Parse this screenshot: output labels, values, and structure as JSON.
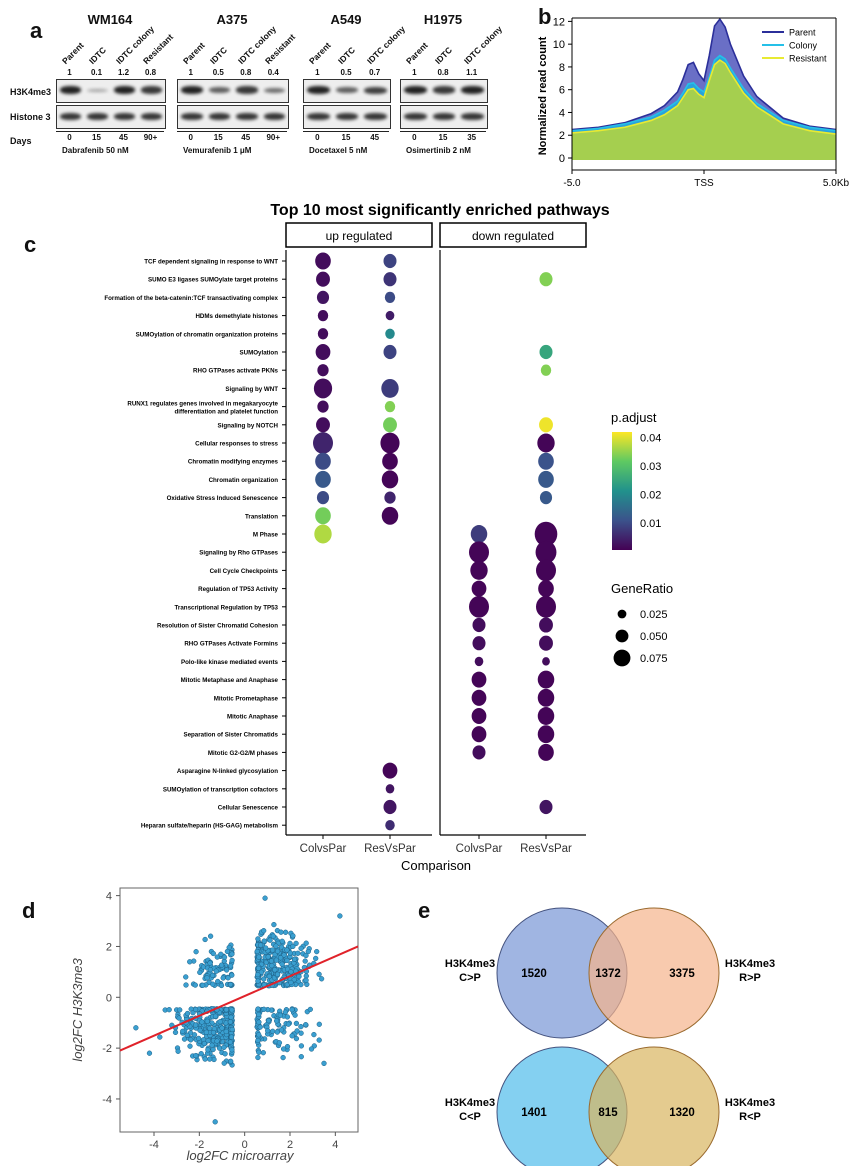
{
  "panel_labels": {
    "a": "a",
    "b": "b",
    "c": "c",
    "d": "d",
    "e": "e"
  },
  "panel_a": {
    "row_labels": [
      "H3K4me3",
      "Histone 3"
    ],
    "days_label": "Days",
    "blots": [
      {
        "title": "WM164",
        "lanes": [
          "Parent",
          "IDTC",
          "IDTC colony",
          "Resistant"
        ],
        "ratios": [
          "1",
          "0.1",
          "1.2",
          "0.8"
        ],
        "days": [
          "0",
          "15",
          "45",
          "90+"
        ],
        "drug": "Dabrafenib 50 nM",
        "h3k4_intensity": [
          1,
          0.15,
          1,
          0.85
        ]
      },
      {
        "title": "A375",
        "lanes": [
          "Parent",
          "IDTC",
          "IDTC colony",
          "Resistant"
        ],
        "ratios": [
          "1",
          "0.5",
          "0.8",
          "0.4"
        ],
        "days": [
          "0",
          "15",
          "45",
          "90+"
        ],
        "drug": "Vemurafenib 1 μM",
        "h3k4_intensity": [
          1,
          0.6,
          0.85,
          0.5
        ]
      },
      {
        "title": "A549",
        "lanes": [
          "Parent",
          "IDTC",
          "IDTC colony"
        ],
        "ratios": [
          "1",
          "0.5",
          "0.7"
        ],
        "days": [
          "0",
          "15",
          "45"
        ],
        "drug": "Docetaxel 5 nM",
        "h3k4_intensity": [
          1,
          0.6,
          0.8
        ]
      },
      {
        "title": "H1975",
        "lanes": [
          "Parent",
          "IDTC",
          "IDTC colony"
        ],
        "ratios": [
          "1",
          "0.8",
          "1.1"
        ],
        "days": [
          "0",
          "15",
          "35"
        ],
        "drug": "Osimertinib 2 nM",
        "h3k4_intensity": [
          1,
          0.85,
          1
        ]
      }
    ]
  },
  "chart_data": [
    {
      "type": "area",
      "panel": "b",
      "xlabel": "",
      "ylabel": "Normalized read count",
      "ylim": [
        0,
        13
      ],
      "yticks": [
        0,
        2,
        4,
        6,
        8,
        10,
        12
      ],
      "xticks": [
        "-5.0",
        "TSS",
        "5.0Kb"
      ],
      "legend_position": "top-right",
      "series": [
        {
          "name": "Parent",
          "color": "#2b2f9a",
          "fill": "#6a6fc6",
          "x": [
            -5,
            -4,
            -3,
            -2,
            -1.5,
            -1,
            -0.8,
            -0.6,
            -0.4,
            -0.2,
            0,
            0.2,
            0.4,
            0.6,
            0.8,
            1,
            1.5,
            2,
            3,
            4,
            5
          ],
          "values": [
            2.5,
            2.7,
            3.1,
            3.9,
            4.6,
            5.8,
            6.9,
            8.2,
            8.4,
            7.4,
            6.8,
            9.0,
            11.6,
            12.2,
            11.5,
            10.0,
            7.2,
            5.4,
            3.5,
            2.8,
            2.5
          ]
        },
        {
          "name": "Colony",
          "color": "#25c0e8",
          "fill": "#29a3dc",
          "x": [
            -5,
            -4,
            -3,
            -2,
            -1.5,
            -1,
            -0.8,
            -0.6,
            -0.4,
            -0.2,
            0,
            0.2,
            0.4,
            0.6,
            0.8,
            1,
            1.5,
            2,
            3,
            4,
            5
          ],
          "values": [
            2.4,
            2.6,
            3.0,
            3.6,
            4.2,
            5.0,
            5.7,
            6.5,
            6.6,
            6.1,
            5.8,
            7.1,
            8.6,
            9.0,
            8.7,
            7.9,
            6.1,
            4.8,
            3.3,
            2.7,
            2.4
          ]
        },
        {
          "name": "Resistant",
          "color": "#e8ea32",
          "fill": "#a5cf4f",
          "x": [
            -5,
            -4,
            -3,
            -2,
            -1.5,
            -1,
            -0.8,
            -0.6,
            -0.4,
            -0.2,
            0,
            0.2,
            0.4,
            0.6,
            0.8,
            1,
            1.5,
            2,
            3,
            4,
            5
          ],
          "values": [
            2.2,
            2.4,
            2.7,
            3.3,
            3.8,
            4.6,
            5.3,
            6.0,
            6.1,
            5.6,
            5.3,
            6.8,
            8.2,
            8.6,
            8.3,
            7.5,
            5.7,
            4.5,
            3.0,
            2.4,
            2.1
          ]
        }
      ]
    },
    {
      "type": "scatter",
      "panel": "c",
      "title": "Top 10 most significantly enriched pathways",
      "xlabel": "Comparison",
      "facets": [
        "up regulated",
        "down regulated"
      ],
      "comparisons": [
        "ColvsPar",
        "ResVsPar"
      ],
      "color_legend": {
        "title": "p.adjust",
        "ticks": [
          "0.04",
          "0.03",
          "0.02",
          "0.01"
        ],
        "range": [
          0.0005,
          0.042
        ]
      },
      "size_legend": {
        "title": "GeneRatio",
        "ticks": [
          "0.025",
          "0.050",
          "0.075"
        ]
      },
      "pathways": [
        "TCF dependent signaling in response to WNT",
        "SUMO E3 ligases SUMOylate target proteins",
        "Formation of the beta-catenin:TCF transactivating complex",
        "HDMs demethylate histones",
        "SUMOylation of chromatin organization proteins",
        "SUMOylation",
        "RHO GTPases activate PKNs",
        "Signaling by WNT",
        "RUNX1 regulates genes involved in megakaryocyte differentiation and platelet function",
        "Signaling by NOTCH",
        "Cellular responses to stress",
        "Chromatin modifying enzymes",
        "Chromatin organization",
        "Oxidative Stress Induced Senescence",
        "Translation",
        "M Phase",
        "Signaling by Rho GTPases",
        "Cell Cycle Checkpoints",
        "Regulation of TP53 Activity",
        "Transcriptional Regulation by TP53",
        "Resolution of Sister Chromatid Cohesion",
        "RHO GTPases Activate Formins",
        "Polo-like kinase mediated events",
        "Mitotic Metaphase and Anaphase",
        "Mitotic Prometaphase",
        "Mitotic Anaphase",
        "Separation of Sister Chromatids",
        "Mitotic G2-G2/M phases",
        "Asparagine N-linked glycosylation",
        "SUMOylation of transcription cofactors",
        "Cellular Senescence",
        "Heparan sulfate/heparin (HS-GAG) metabolism"
      ],
      "points": [
        {
          "facet": 0,
          "comp": 0,
          "row": 0,
          "p": 0.002,
          "ratio": 0.06
        },
        {
          "facet": 0,
          "comp": 1,
          "row": 0,
          "p": 0.009,
          "ratio": 0.045
        },
        {
          "facet": 0,
          "comp": 0,
          "row": 1,
          "p": 0.002,
          "ratio": 0.05
        },
        {
          "facet": 0,
          "comp": 1,
          "row": 1,
          "p": 0.007,
          "ratio": 0.045
        },
        {
          "facet": 1,
          "comp": 1,
          "row": 1,
          "p": 0.034,
          "ratio": 0.045
        },
        {
          "facet": 0,
          "comp": 0,
          "row": 2,
          "p": 0.003,
          "ratio": 0.04
        },
        {
          "facet": 0,
          "comp": 1,
          "row": 2,
          "p": 0.01,
          "ratio": 0.03
        },
        {
          "facet": 0,
          "comp": 0,
          "row": 3,
          "p": 0.002,
          "ratio": 0.03
        },
        {
          "facet": 0,
          "comp": 1,
          "row": 3,
          "p": 0.004,
          "ratio": 0.02
        },
        {
          "facet": 0,
          "comp": 0,
          "row": 4,
          "p": 0.002,
          "ratio": 0.03
        },
        {
          "facet": 0,
          "comp": 1,
          "row": 4,
          "p": 0.02,
          "ratio": 0.025
        },
        {
          "facet": 0,
          "comp": 0,
          "row": 5,
          "p": 0.002,
          "ratio": 0.055
        },
        {
          "facet": 0,
          "comp": 1,
          "row": 5,
          "p": 0.009,
          "ratio": 0.045
        },
        {
          "facet": 1,
          "comp": 1,
          "row": 5,
          "p": 0.025,
          "ratio": 0.045
        },
        {
          "facet": 0,
          "comp": 0,
          "row": 6,
          "p": 0.002,
          "ratio": 0.035
        },
        {
          "facet": 1,
          "comp": 1,
          "row": 6,
          "p": 0.034,
          "ratio": 0.03
        },
        {
          "facet": 0,
          "comp": 0,
          "row": 7,
          "p": 0.002,
          "ratio": 0.075
        },
        {
          "facet": 0,
          "comp": 1,
          "row": 7,
          "p": 0.008,
          "ratio": 0.07
        },
        {
          "facet": 0,
          "comp": 0,
          "row": 8,
          "p": 0.002,
          "ratio": 0.035
        },
        {
          "facet": 0,
          "comp": 1,
          "row": 8,
          "p": 0.034,
          "ratio": 0.03
        },
        {
          "facet": 0,
          "comp": 0,
          "row": 9,
          "p": 0.002,
          "ratio": 0.05
        },
        {
          "facet": 0,
          "comp": 1,
          "row": 9,
          "p": 0.033,
          "ratio": 0.05
        },
        {
          "facet": 1,
          "comp": 1,
          "row": 9,
          "p": 0.041,
          "ratio": 0.05
        },
        {
          "facet": 0,
          "comp": 0,
          "row": 10,
          "p": 0.005,
          "ratio": 0.085
        },
        {
          "facet": 0,
          "comp": 1,
          "row": 10,
          "p": 0.001,
          "ratio": 0.08
        },
        {
          "facet": 1,
          "comp": 1,
          "row": 10,
          "p": 0.001,
          "ratio": 0.07
        },
        {
          "facet": 0,
          "comp": 0,
          "row": 11,
          "p": 0.01,
          "ratio": 0.06
        },
        {
          "facet": 0,
          "comp": 1,
          "row": 11,
          "p": 0.001,
          "ratio": 0.06
        },
        {
          "facet": 1,
          "comp": 1,
          "row": 11,
          "p": 0.011,
          "ratio": 0.06
        },
        {
          "facet": 0,
          "comp": 0,
          "row": 12,
          "p": 0.012,
          "ratio": 0.06
        },
        {
          "facet": 0,
          "comp": 1,
          "row": 12,
          "p": 0.001,
          "ratio": 0.065
        },
        {
          "facet": 1,
          "comp": 1,
          "row": 12,
          "p": 0.012,
          "ratio": 0.06
        },
        {
          "facet": 0,
          "comp": 0,
          "row": 13,
          "p": 0.01,
          "ratio": 0.04
        },
        {
          "facet": 0,
          "comp": 1,
          "row": 13,
          "p": 0.005,
          "ratio": 0.035
        },
        {
          "facet": 1,
          "comp": 1,
          "row": 13,
          "p": 0.012,
          "ratio": 0.04
        },
        {
          "facet": 0,
          "comp": 0,
          "row": 14,
          "p": 0.033,
          "ratio": 0.06
        },
        {
          "facet": 0,
          "comp": 1,
          "row": 14,
          "p": 0.001,
          "ratio": 0.065
        },
        {
          "facet": 0,
          "comp": 0,
          "row": 15,
          "p": 0.037,
          "ratio": 0.07
        },
        {
          "facet": 1,
          "comp": 0,
          "row": 15,
          "p": 0.008,
          "ratio": 0.065
        },
        {
          "facet": 1,
          "comp": 1,
          "row": 15,
          "p": 0.001,
          "ratio": 0.1
        },
        {
          "facet": 1,
          "comp": 0,
          "row": 16,
          "p": 0.001,
          "ratio": 0.085
        },
        {
          "facet": 1,
          "comp": 1,
          "row": 16,
          "p": 0.001,
          "ratio": 0.09
        },
        {
          "facet": 1,
          "comp": 0,
          "row": 17,
          "p": 0.001,
          "ratio": 0.07
        },
        {
          "facet": 1,
          "comp": 1,
          "row": 17,
          "p": 0.001,
          "ratio": 0.085
        },
        {
          "facet": 1,
          "comp": 0,
          "row": 18,
          "p": 0.001,
          "ratio": 0.055
        },
        {
          "facet": 1,
          "comp": 1,
          "row": 18,
          "p": 0.001,
          "ratio": 0.06
        },
        {
          "facet": 1,
          "comp": 0,
          "row": 19,
          "p": 0.001,
          "ratio": 0.085
        },
        {
          "facet": 1,
          "comp": 1,
          "row": 19,
          "p": 0.001,
          "ratio": 0.085
        },
        {
          "facet": 1,
          "comp": 0,
          "row": 20,
          "p": 0.002,
          "ratio": 0.045
        },
        {
          "facet": 1,
          "comp": 1,
          "row": 20,
          "p": 0.002,
          "ratio": 0.05
        },
        {
          "facet": 1,
          "comp": 0,
          "row": 21,
          "p": 0.002,
          "ratio": 0.045
        },
        {
          "facet": 1,
          "comp": 1,
          "row": 21,
          "p": 0.002,
          "ratio": 0.05
        },
        {
          "facet": 1,
          "comp": 0,
          "row": 22,
          "p": 0.002,
          "ratio": 0.02
        },
        {
          "facet": 1,
          "comp": 1,
          "row": 22,
          "p": 0.002,
          "ratio": 0.015
        },
        {
          "facet": 1,
          "comp": 0,
          "row": 23,
          "p": 0.001,
          "ratio": 0.055
        },
        {
          "facet": 1,
          "comp": 1,
          "row": 23,
          "p": 0.001,
          "ratio": 0.065
        },
        {
          "facet": 1,
          "comp": 0,
          "row": 24,
          "p": 0.001,
          "ratio": 0.055
        },
        {
          "facet": 1,
          "comp": 1,
          "row": 24,
          "p": 0.001,
          "ratio": 0.065
        },
        {
          "facet": 1,
          "comp": 0,
          "row": 25,
          "p": 0.001,
          "ratio": 0.055
        },
        {
          "facet": 1,
          "comp": 1,
          "row": 25,
          "p": 0.001,
          "ratio": 0.065
        },
        {
          "facet": 1,
          "comp": 0,
          "row": 26,
          "p": 0.001,
          "ratio": 0.055
        },
        {
          "facet": 1,
          "comp": 1,
          "row": 26,
          "p": 0.001,
          "ratio": 0.065
        },
        {
          "facet": 1,
          "comp": 0,
          "row": 27,
          "p": 0.002,
          "ratio": 0.045
        },
        {
          "facet": 1,
          "comp": 1,
          "row": 27,
          "p": 0.001,
          "ratio": 0.06
        },
        {
          "facet": 0,
          "comp": 1,
          "row": 28,
          "p": 0.001,
          "ratio": 0.055
        },
        {
          "facet": 0,
          "comp": 1,
          "row": 29,
          "p": 0.003,
          "ratio": 0.02
        },
        {
          "facet": 0,
          "comp": 1,
          "row": 30,
          "p": 0.003,
          "ratio": 0.045
        },
        {
          "facet": 1,
          "comp": 1,
          "row": 30,
          "p": 0.003,
          "ratio": 0.045
        },
        {
          "facet": 0,
          "comp": 1,
          "row": 31,
          "p": 0.006,
          "ratio": 0.025
        }
      ]
    },
    {
      "type": "scatter",
      "panel": "d",
      "xlabel": "log2FC microarray",
      "ylabel": "log2FC H3K3me3",
      "xlim": [
        -5.5,
        5
      ],
      "ylim": [
        -5.3,
        4.3
      ],
      "xticks": [
        -4,
        -2,
        0,
        2,
        4
      ],
      "yticks": [
        4,
        2,
        0,
        -2,
        -4
      ],
      "point_color": "#3a9fd0",
      "fit_line": {
        "color": "#e0222a",
        "intercept": 0.05,
        "slope": 0.39
      },
      "note": "approx. 900 points in four clusters"
    }
  ],
  "panel_e": {
    "venns": [
      {
        "left_label": [
          "H3K4me3",
          "C>P"
        ],
        "right_label": [
          "H3K4me3",
          "R>P"
        ],
        "left_only": "1520",
        "overlap": "1372",
        "right_only": "3375",
        "left_color": "#8fa8dd",
        "right_color": "#f5b38c"
      },
      {
        "left_label": [
          "H3K4me3",
          "C<P"
        ],
        "right_label": [
          "H3K4me3",
          "R<P"
        ],
        "left_only": "1401",
        "overlap": "815",
        "right_only": "1320",
        "left_color": "#6fc8ee",
        "right_color": "#d8b560"
      }
    ]
  }
}
